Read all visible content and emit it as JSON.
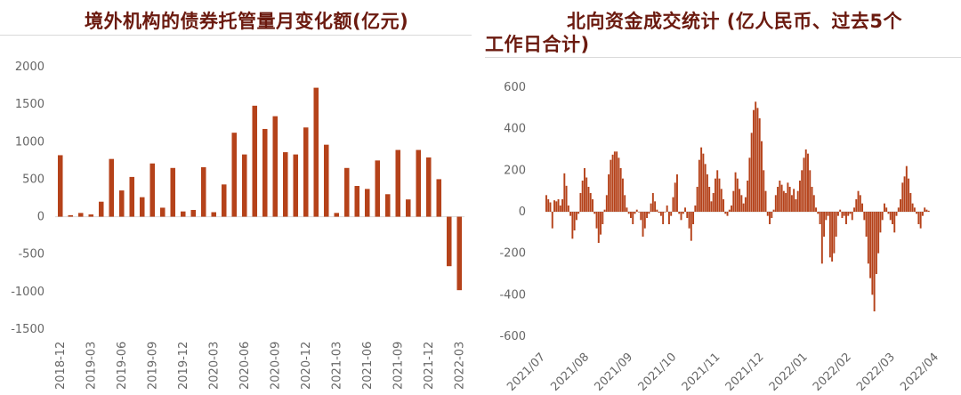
{
  "colors": {
    "bar": "#b5421a",
    "title": "#6b1a0f",
    "axis_text": "#666666",
    "axis_line": "#d9d9d9"
  },
  "chart_data": [
    {
      "type": "bar",
      "title": "境外机构的债券托管量月变化额(亿元)",
      "ylim": [
        -1500,
        2000
      ],
      "yticks": [
        2000,
        1500,
        1000,
        500,
        0,
        -500,
        -1000,
        -1500
      ],
      "grid": false,
      "categories": [
        "2018-12",
        "2019-01",
        "2019-02",
        "2019-03",
        "2019-04",
        "2019-05",
        "2019-06",
        "2019-07",
        "2019-08",
        "2019-09",
        "2019-10",
        "2019-11",
        "2019-12",
        "2020-01",
        "2020-02",
        "2020-03",
        "2020-04",
        "2020-05",
        "2020-06",
        "2020-07",
        "2020-08",
        "2020-09",
        "2020-10",
        "2020-11",
        "2020-12",
        "2021-01",
        "2021-02",
        "2021-03",
        "2021-04",
        "2021-05",
        "2021-06",
        "2021-07",
        "2021-08",
        "2021-09",
        "2021-10",
        "2021-11",
        "2021-12",
        "2022-01",
        "2022-02",
        "2022-03"
      ],
      "xtick_labels": [
        "2018-12",
        "2019-03",
        "2019-06",
        "2019-09",
        "2019-12",
        "2020-03",
        "2020-06",
        "2020-09",
        "2020-12",
        "2021-03",
        "2021-06",
        "2021-09",
        "2021-12",
        "2022-03"
      ],
      "values": [
        820,
        20,
        50,
        30,
        200,
        770,
        350,
        530,
        260,
        710,
        120,
        650,
        70,
        90,
        660,
        60,
        430,
        1120,
        830,
        1480,
        1170,
        1340,
        860,
        830,
        1190,
        1720,
        960,
        50,
        650,
        410,
        370,
        750,
        300,
        890,
        230,
        890,
        790,
        500,
        -660,
        -980
      ]
    },
    {
      "type": "bar",
      "title": "北向资金成交统计 (亿人民币、过去5个工作日合计)",
      "title_line1": "北向资金成交统计 (亿人民币、过去5个",
      "title_line2": "工作日合计)",
      "ylim": [
        -600,
        600
      ],
      "yticks": [
        600,
        400,
        200,
        0,
        -200,
        -400,
        -600
      ],
      "grid": false,
      "x_range": [
        "2021/07",
        "2022/04"
      ],
      "xtick_labels": [
        "2021/07",
        "2021/08",
        "2021/09",
        "2021/10",
        "2021/11",
        "2021/12",
        "2022/01",
        "2022/02",
        "2022/03",
        "2022/04"
      ],
      "values": [
        80,
        60,
        45,
        -80,
        55,
        50,
        60,
        30,
        60,
        185,
        125,
        30,
        -20,
        -130,
        -90,
        -40,
        -10,
        90,
        150,
        210,
        165,
        120,
        90,
        60,
        -10,
        -80,
        -150,
        -110,
        -60,
        10,
        80,
        180,
        250,
        275,
        290,
        290,
        260,
        210,
        160,
        80,
        20,
        -10,
        -30,
        -60,
        -10,
        10,
        0,
        -40,
        -120,
        -80,
        -30,
        -10,
        40,
        90,
        50,
        10,
        -5,
        -20,
        -60,
        0,
        30,
        -60,
        -20,
        70,
        140,
        180,
        -10,
        -40,
        -10,
        20,
        -30,
        -80,
        -140,
        -60,
        30,
        120,
        250,
        310,
        280,
        230,
        180,
        120,
        50,
        90,
        160,
        200,
        160,
        110,
        60,
        -10,
        -20,
        10,
        30,
        100,
        190,
        160,
        110,
        80,
        40,
        70,
        150,
        260,
        380,
        490,
        530,
        500,
        450,
        340,
        200,
        100,
        -20,
        -60,
        -30,
        10,
        80,
        120,
        150,
        130,
        100,
        90,
        140,
        120,
        80,
        110,
        60,
        100,
        150,
        200,
        260,
        300,
        280,
        200,
        120,
        80,
        20,
        -10,
        -60,
        -250,
        -120,
        -40,
        -20,
        -220,
        -240,
        -200,
        -120,
        -20,
        10,
        -30,
        -20,
        -60,
        -20,
        -10,
        -40,
        20,
        60,
        100,
        80,
        40,
        -40,
        -120,
        -250,
        -320,
        -400,
        -480,
        -300,
        -200,
        -100,
        -40,
        40,
        20,
        -10,
        -40,
        -60,
        -100,
        -20,
        20,
        60,
        140,
        170,
        220,
        160,
        90,
        40,
        20,
        -10,
        -60,
        -80,
        -20,
        20,
        10,
        5
      ]
    }
  ]
}
